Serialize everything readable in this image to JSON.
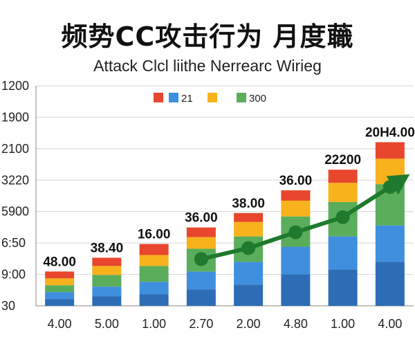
{
  "chart_data": {
    "type": "bar",
    "stacked": true,
    "title": "频势CC攻击行为 月度蘵",
    "subtitle": "Attack Clcl liithe Nerrearc Wirieg",
    "categories": [
      "4.00",
      "5.00",
      "1.00",
      "2.70",
      "2.00",
      "4.80",
      "1.00",
      "4.00"
    ],
    "y_tick_labels": [
      "1200",
      "1900",
      "2100",
      "3220",
      "5900",
      "6:50",
      "9:00",
      "30"
    ],
    "ylim": [
      0,
      320
    ],
    "grid": true,
    "legend_position": "top",
    "legend": [
      {
        "label": "",
        "color": "#e8472d"
      },
      {
        "label": "21",
        "color": "#3b8ee0"
      },
      {
        "label": "",
        "color": "#f7b21c"
      },
      {
        "label": "300",
        "color": "#5aad5a"
      }
    ],
    "data_labels": [
      "48.00",
      "38.40",
      "16.00",
      "36.00",
      "38.00",
      "36.00",
      "22200",
      "20H4.00"
    ],
    "series": [
      {
        "color": "#2d6db5",
        "values": [
          10,
          14,
          17,
          24,
          31,
          46,
          53,
          64
        ]
      },
      {
        "color": "#3f8fdf",
        "values": [
          10,
          14,
          18,
          26,
          33,
          40,
          48,
          53
        ]
      },
      {
        "color": "#5aad5a",
        "values": [
          10,
          17,
          23,
          33,
          37,
          44,
          50,
          60
        ]
      },
      {
        "color": "#f7b21c",
        "values": [
          10,
          13,
          16,
          17,
          21,
          23,
          28,
          37
        ]
      },
      {
        "color": "#e8472d",
        "values": [
          10,
          12,
          16,
          14,
          13,
          15,
          19,
          24
        ]
      }
    ],
    "trend": {
      "color": "#1f7a2e",
      "points": [
        [
          3,
          68
        ],
        [
          4,
          84
        ],
        [
          5,
          107
        ],
        [
          6,
          129
        ],
        [
          7,
          173
        ]
      ]
    }
  }
}
